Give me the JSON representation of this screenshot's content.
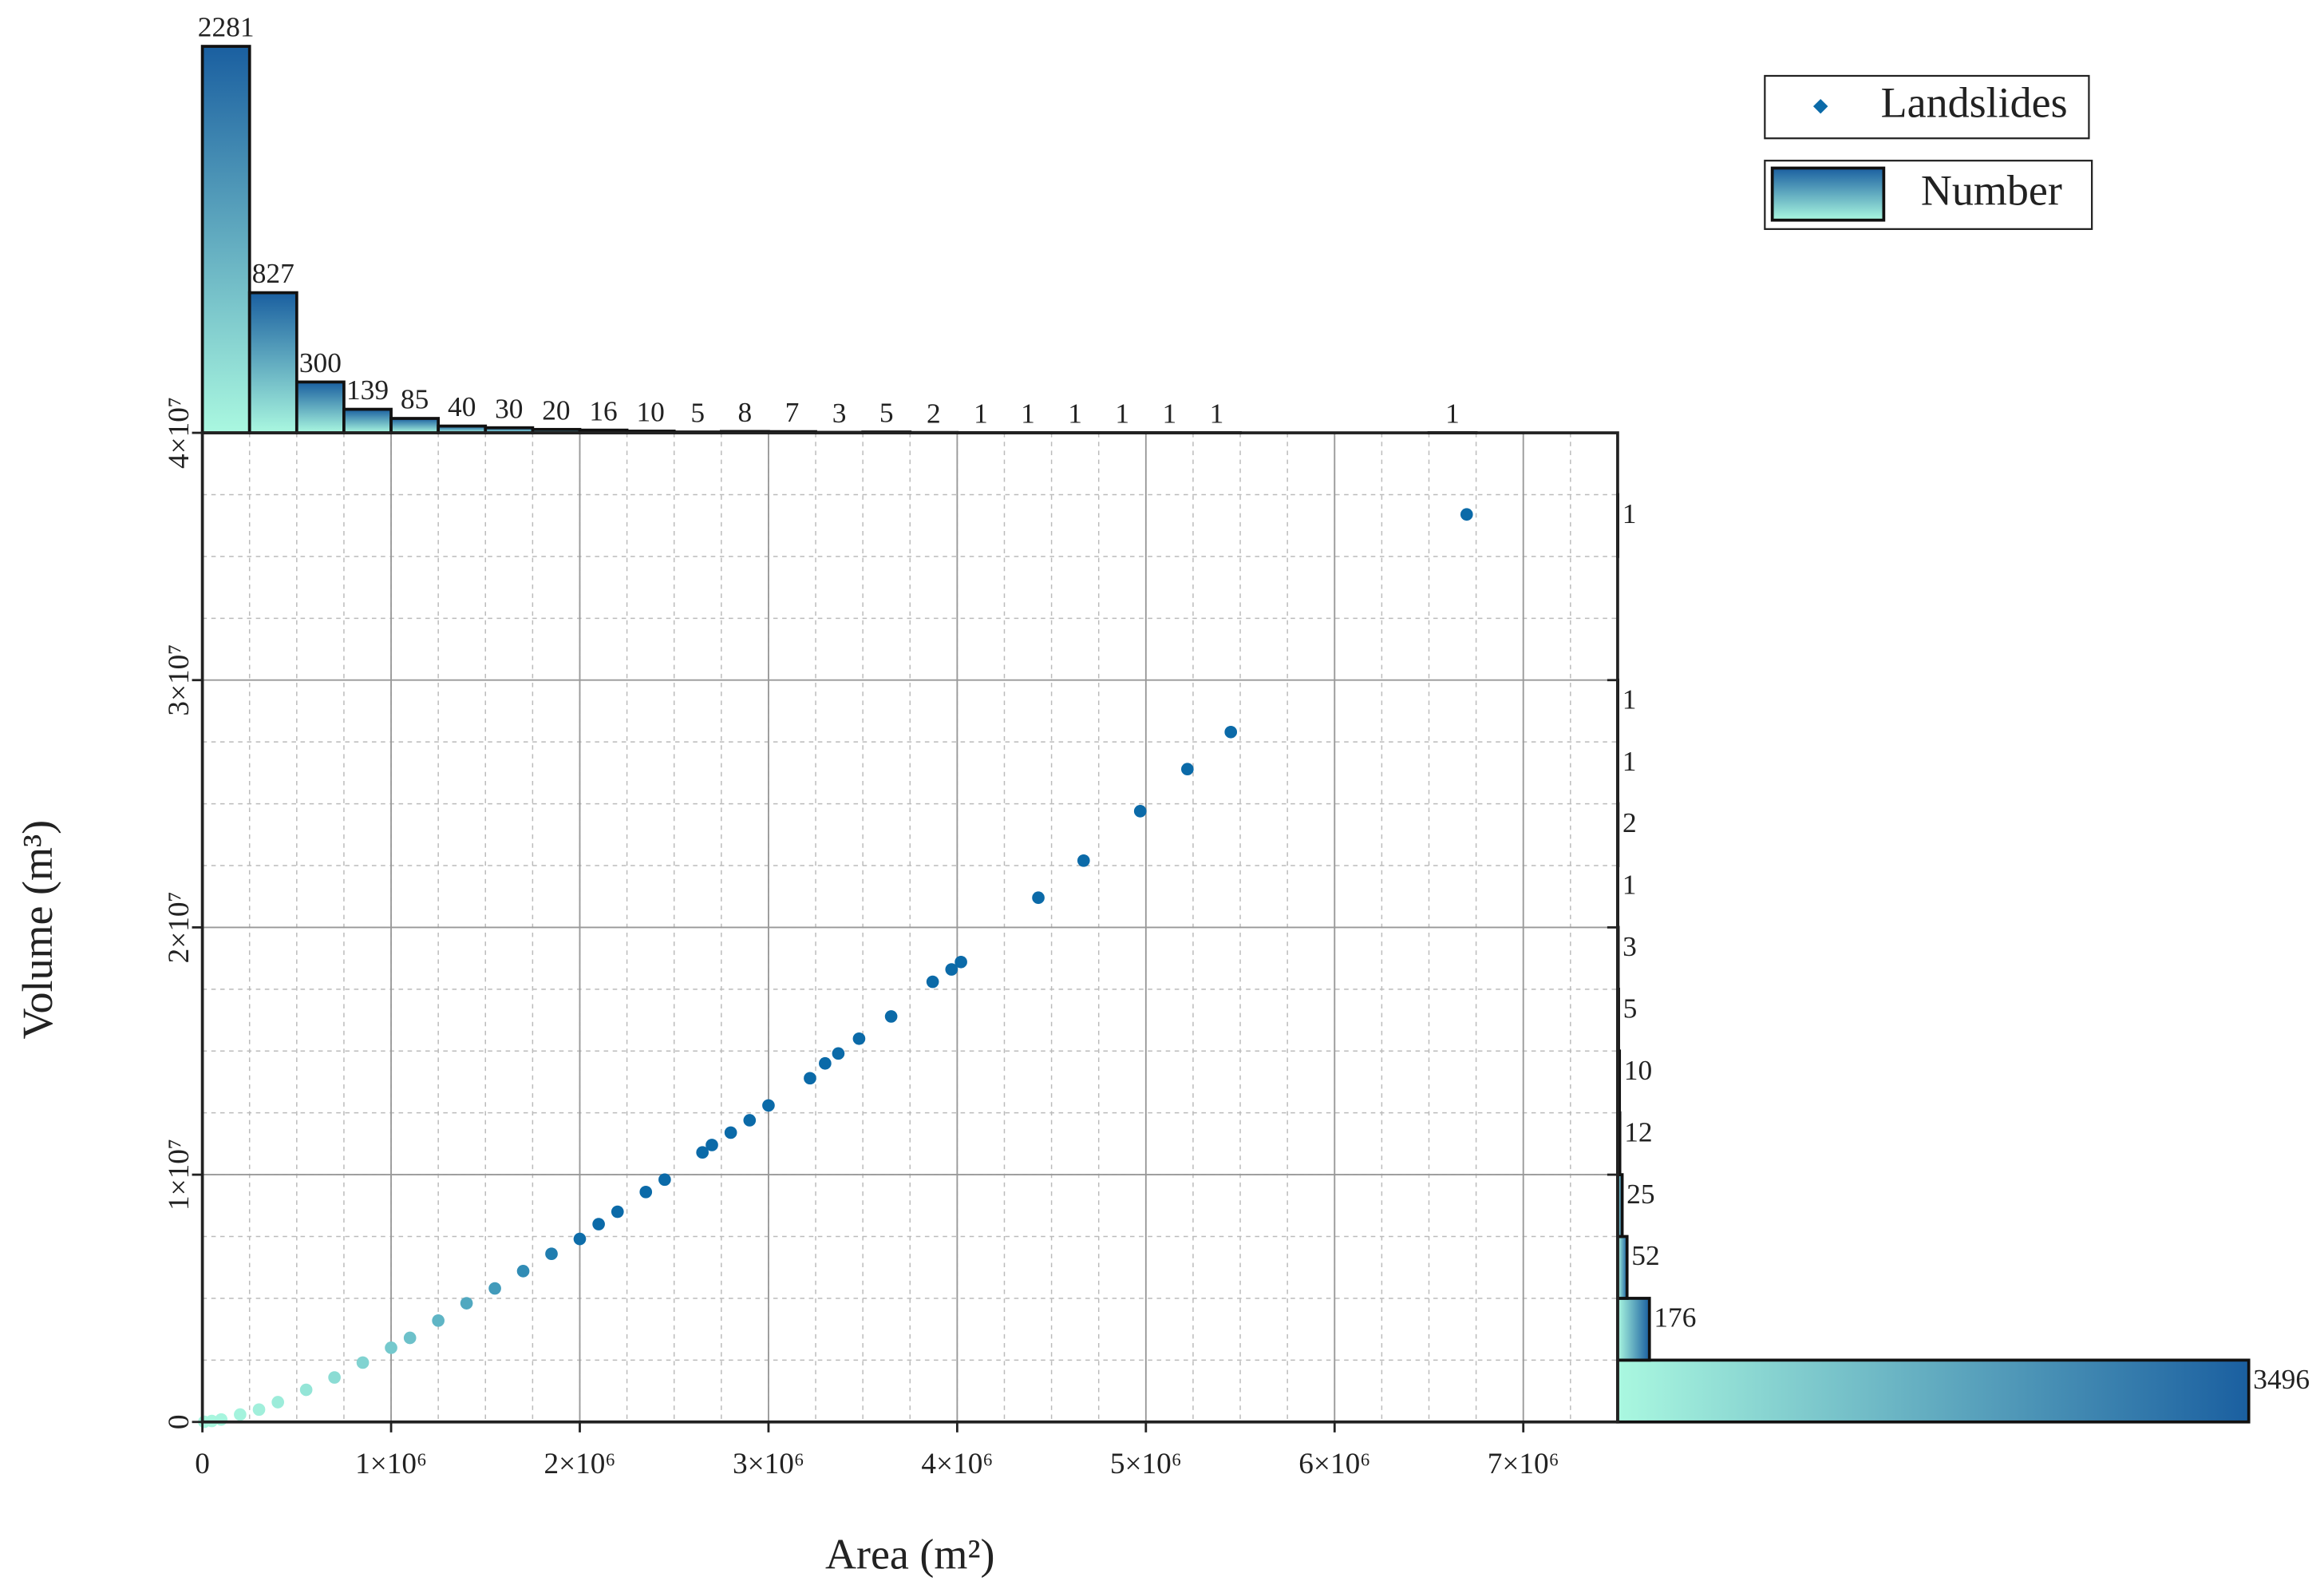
{
  "chart_data": [
    {
      "type": "scatter",
      "x_label": "Area (m²)",
      "y_label": "Volume (m³)",
      "xlim": [
        0,
        7500000
      ],
      "ylim": [
        0,
        40000000
      ],
      "xticks": [
        0,
        {
          "value": 1000000,
          "label": "1×10⁶"
        },
        {
          "value": 2000000,
          "label": "2×10⁶"
        },
        {
          "value": 3000000,
          "label": "3×10⁶"
        },
        {
          "value": 4000000,
          "label": "4×10⁶"
        },
        {
          "value": 5000000,
          "label": "5×10⁶"
        },
        {
          "value": 6000000,
          "label": "6×10⁶"
        },
        {
          "value": 7000000,
          "label": "7×10⁶"
        }
      ],
      "yticks": [
        0,
        {
          "value": 10000000,
          "label": "1×10⁷"
        },
        {
          "value": 20000000,
          "label": "2×10⁷"
        },
        {
          "value": 30000000,
          "label": "3×10⁷"
        },
        {
          "value": 40000000,
          "label": "4×10⁷"
        }
      ],
      "grid": true,
      "legend": "top-right",
      "colormap": [
        "#a8f6de",
        "#0b6aa8"
      ],
      "series": [
        {
          "name": "Landslides",
          "color": "#0b6aa8",
          "x": [
            10000,
            50000,
            100000,
            200000,
            300000,
            400000,
            550000,
            700000,
            850000,
            1000000,
            1100000,
            1250000,
            1400000,
            1550000,
            1700000,
            1850000,
            2000000,
            2100000,
            2200000,
            2350000,
            2450000,
            2650000,
            2700000,
            2800000,
            2900000,
            3000000,
            3220000,
            3300000,
            3370000,
            3480000,
            3650000,
            3870000,
            3970000,
            4020000,
            4430000,
            4670000,
            4970000,
            5220000,
            5450000,
            6700000
          ],
          "values": [
            5000,
            40000,
            100000,
            300000,
            500000,
            800000,
            1300000,
            1800000,
            2400000,
            3000000,
            3400000,
            4100000,
            4800000,
            5400000,
            6100000,
            6800000,
            7400000,
            8000000,
            8500000,
            9300000,
            9800000,
            10900000,
            11200000,
            11700000,
            12200000,
            12800000,
            13900000,
            14500000,
            14900000,
            15500000,
            16400000,
            17800000,
            18300000,
            18600000,
            21200000,
            22700000,
            24700000,
            26400000,
            27900000,
            36700000
          ]
        }
      ]
    },
    {
      "type": "histogram",
      "orientation": "vertical",
      "name": "Number",
      "colors": [
        "#aaf8e0",
        "#1a5fa0"
      ],
      "bins": [
        0,
        250000,
        500000,
        750000,
        1000000,
        1250000,
        1500000,
        1750000,
        2000000,
        2250000,
        2500000,
        2750000,
        3000000,
        3250000,
        3500000,
        3750000,
        4000000,
        4250000,
        4500000,
        4750000,
        5000000,
        5250000,
        5500000,
        5750000,
        6000000,
        6250000,
        6500000,
        6750000,
        7000000,
        7250000,
        7500000
      ],
      "values": [
        2281,
        827,
        300,
        139,
        85,
        40,
        30,
        20,
        16,
        10,
        5,
        8,
        7,
        3,
        5,
        2,
        1,
        1,
        1,
        1,
        1,
        1,
        0,
        0,
        0,
        0,
        1,
        0,
        0,
        0
      ],
      "ylim": [
        0,
        2300
      ]
    },
    {
      "type": "histogram",
      "orientation": "horizontal",
      "colors": [
        "#aaf8e0",
        "#1a5fa0"
      ],
      "bins": [
        0,
        2500000,
        5000000,
        7500000,
        10000000,
        12500000,
        15000000,
        17500000,
        20000000,
        22500000,
        25000000,
        27500000,
        30000000,
        32500000,
        35000000,
        37500000,
        40000000
      ],
      "values": [
        3496,
        176,
        52,
        25,
        12,
        10,
        5,
        3,
        1,
        2,
        1,
        1,
        0,
        0,
        1,
        0
      ],
      "xlim": [
        0,
        3500
      ]
    }
  ]
}
